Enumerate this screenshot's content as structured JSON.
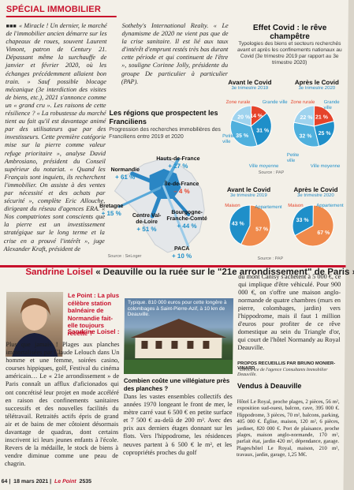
{
  "section": "SPÉCIAL IMMOBILIER",
  "column1": "« Miracle ! Un dernier, le marché de l'immobilier ancien démarre sur les chapeaux de roues, souvent Laurent Vimont, patron de Century 21. Dépassant même la surchauffe de janvier et février 2020, où les échanges précédemment allaient bon train. » Sauf possible blocage mécanique (3e interdiction des visites de biens, etc.), 2021 s'annonce comme un « grand cru ». Les raisons de cette résilience ? « La robustesse du marché tient au fait qu'il est davantage animé par des utilisateurs que par des investisseurs. Cette première catégorie mise sur la pierre comme valeur refuge prioritaire », analyse David Ambrosiano, président du Conseil supérieur du notariat. « Quand les Français sont inquiets, ils recherchent l'immobilier. On assiste à des ventes par nécessité et des achats par sécurité », complète Eric Allouche, dirigeant du réseau d'agences ERA. « Nos compatriotes sont conscients que la pierre est un investissement stratégique sur le long terme et la crise en a prouvé l'intérêt », juge Alexander Kraft, président de",
  "column2": "Sotheby's International Realty. « Le dynamisme de 2020 ne vient pas que de la crise sanitaire. Il est lié aux taux d'intérêt d'emprunt restés très bas durant cette période et qui continuent de l'être », souligne Corinne Jolly, présidente du groupe De particulier à particulier (PAP).",
  "map": {
    "title": "Les régions que prospectent les Franciliens",
    "subtitle": "Progression des recherches immobilières des Franciliens entre 2019 et 2020",
    "regions": [
      {
        "name": "Hauts-de-France",
        "value": "+ 27 %"
      },
      {
        "name": "Normandie",
        "value": "+ 61 %"
      },
      {
        "name": "Île-de-France",
        "value": "– 4 %"
      },
      {
        "name": "Bretagne",
        "value": "+ 15 %"
      },
      {
        "name": "Centre Val-de-Loire",
        "value": "+ 51 %"
      },
      {
        "name": "Bourgogne-Franche-Comté",
        "value": "+ 44 %"
      },
      {
        "name": "PACA",
        "value": "+ 10 %"
      }
    ],
    "source": "Source : SeLoger"
  },
  "pies": {
    "title": "Effet Covid : le rêve champêtre",
    "subtitle": "Typologies des biens et secteurs recherchés avant et après les confinements nationaux au Covid (3e trimestre 2019 par rapport au 3e trimestre 2020)",
    "before": "Avant le Covid",
    "after": "Après le Covid",
    "q2019": "3e trimestre 2019",
    "q2020": "3e trimestre 2020",
    "zone_labels": [
      "Zone rurale",
      "Grande ville",
      "Petite ville",
      "Ville moyenne"
    ],
    "type_labels": [
      "Maison",
      "Appartement"
    ],
    "source": "Source : PAP"
  },
  "chart_data": [
    {
      "type": "pie",
      "title": "Avant le Covid",
      "categories": [
        "Zone rurale",
        "Grande ville",
        "Ville moyenne",
        "Petite ville"
      ],
      "values": [
        14,
        31,
        35,
        20
      ],
      "colors": [
        "#e5442b",
        "#1f8fc9",
        "#4fb0dd",
        "#9fd3ee"
      ]
    },
    {
      "type": "pie",
      "title": "Après le Covid",
      "categories": [
        "Zone rurale",
        "Grande ville",
        "Ville moyenne",
        "Petite ville"
      ],
      "values": [
        21,
        25,
        32,
        22
      ],
      "colors": [
        "#e5442b",
        "#1f8fc9",
        "#4fb0dd",
        "#9fd3ee"
      ]
    },
    {
      "type": "pie",
      "title": "Avant le Covid",
      "categories": [
        "Maison",
        "Appartement"
      ],
      "values": [
        57,
        43
      ],
      "colors": [
        "#f08a4b",
        "#1f8fc9"
      ]
    },
    {
      "type": "pie",
      "title": "Après le Covid",
      "categories": [
        "Maison",
        "Appartement"
      ],
      "values": [
        67,
        33
      ],
      "colors": [
        "#f08a4b",
        "#1f8fc9"
      ]
    }
  ],
  "interview": {
    "name": "Sandrine Loisel",
    "headline": "« Deauville ou la ruée sur le \"21e arrondissement\" de Paris »",
    "q1": "Le Point : La plus célèbre station balnéaire de Normandie fait-elle toujours recette ?",
    "a1_name": "Sandrine Loisel :",
    "a1": "Plus que jamais ! Plages aux planches immortalisées par Claude Lelouch dans Un homme et une femme, soirées casino, courses hippiques, golf, Festival du cinéma américain… Le « 21e arrondissement » de Paris connaît un afflux d'aficionados qui ont concrétisé leur projet en mode accéléré en raison des confinements sanitaires successifs et des nouvelles facilités du télétravail. Retraités actifs épris de grand air et de bains de mer côtoient désormais davantage de quadras, dont certains inscrivent ici leurs jeunes enfants à l'école. Revers de la médaille, le stock de biens à vendre diminue comme une peau de chagrin.",
    "caption": "Typique. 810 000 euros pour cette longère à colombages à Saint-Pierre-Azif, à 10 km de Deauville.",
    "q2": "Combien coûte une villégiature près des planches ?",
    "a2": "Dans les vastes ensembles collectifs des années 1970 longeant le front de mer, le mètre carré vaut 6 500 € en petite surface et 7 500 € au-delà de 200 m². Avec des prix aux derniers étages donnant sur les flots. Vers l'hippodrome, les résidences neuves partent à 6 500 € le m², et les copropriétés proches du golf",
    "a3": "du mont Canisy s'achètent à 5 000 €, ce qui implique d'être véhiculé. Pour 900 000 €, on s'offre une maison anglo-normande de quatre chambres (murs en pierre, colombages, jardin) vers l'hippodrome, mais il faut 1 million d'euros pour profiter de ce rêve domestique au sein du Triangle d'or, qui court de l'hôtel Normandy au Royal Deauville.",
    "credit": "PROPOS RECUEILLIS PAR BRUNO MONIER-VINARD",
    "credit_note": "*Directrice de l'agence Consultants Immobilier Deauville.",
    "sold_title": "Vendus à Deauville",
    "sold": "Hôtel Le Royal, proche plages, 2 pièces, 56 m², exposition sud-ouest, balcon, cave, 395 000 €. Hippodrome, 3 pièces, 70 m², balcons, parking, 405 000 €. Église, maison, 120 m², 6 pièces, jardinet, 820 000 €. Port de plaisance, proche plages, maison anglo-normande, 170 m², parfait état, jardin 420 m², dépendance, garage. Plages/hôtel Le Royal, maison, 210 m², travaux, jardin, garage, 1,25 M€."
  },
  "footer": {
    "page": "64",
    "date": "18 mars 2021",
    "magazine": "Le Point",
    "issue": "2535"
  }
}
